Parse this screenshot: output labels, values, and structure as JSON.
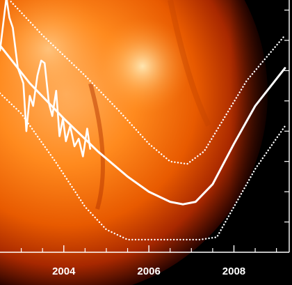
{
  "chart_data": {
    "type": "line",
    "title": "",
    "xlabel": "",
    "ylabel": "",
    "xlim": [
      2002.5,
      2009.3
    ],
    "ylim": [
      0,
      100
    ],
    "grid": false,
    "legend": "none",
    "x_tick_labels": [
      "2004",
      "2006",
      "2008"
    ],
    "x_tick_values": [
      2004,
      2006,
      2008
    ],
    "x_minor_ticks": [
      2003,
      2003.5,
      2004.5,
      2005,
      2005.5,
      2006.5,
      2007,
      2007.5,
      2008.5,
      2009
    ],
    "y_minor_ticks": [
      12,
      24,
      36,
      48,
      60,
      72,
      84,
      96
    ],
    "colors": {
      "lines": "#ffffff",
      "background": "#000000",
      "sun_core": "#ff9a33",
      "sun_edge": "#7a1400"
    },
    "series": [
      {
        "style": "solid",
        "x": [
          2002.5,
          2003.2,
          2004.0,
          2004.8,
          2005.5,
          2006.0,
          2006.5,
          2006.8,
          2007.1,
          2007.5,
          2008.0,
          2008.5,
          2009.2
        ],
        "y": [
          82,
          67,
          53,
          40,
          30,
          24,
          20,
          19,
          20,
          27,
          43,
          58,
          73
        ]
      },
      {
        "style": "dotted",
        "x": [
          2002.5,
          2003.5,
          2004.5,
          2005.3,
          2006.0,
          2006.5,
          2006.9,
          2007.3,
          2007.8,
          2008.3,
          2009.2
        ],
        "y": [
          104,
          86,
          70,
          56,
          43,
          36,
          35,
          40,
          54,
          68,
          86
        ]
      },
      {
        "style": "dotted",
        "x": [
          2002.5,
          2003.0,
          2003.8,
          2004.5,
          2005.0,
          2005.5,
          2006.5,
          2007.2,
          2007.6,
          2008.0,
          2008.5,
          2009.2
        ],
        "y": [
          63,
          55,
          36,
          18,
          9,
          5,
          5,
          5,
          6,
          18,
          33,
          50
        ]
      },
      {
        "style": "solid-jagged",
        "x": [
          2002.5,
          2002.65,
          2002.72,
          2002.8,
          2002.92,
          2003.05,
          2003.12,
          2003.2,
          2003.28,
          2003.38,
          2003.47,
          2003.55,
          2003.65,
          2003.73,
          2003.82,
          2003.9,
          2003.98,
          2004.05,
          2004.15,
          2004.25,
          2004.35,
          2004.45,
          2004.55,
          2004.62
        ],
        "y": [
          80,
          101,
          93,
          89,
          73,
          67,
          48,
          62,
          58,
          70,
          76,
          75,
          59,
          54,
          64,
          46,
          53,
          44,
          50,
          42,
          45,
          38,
          49,
          41
        ]
      }
    ]
  }
}
